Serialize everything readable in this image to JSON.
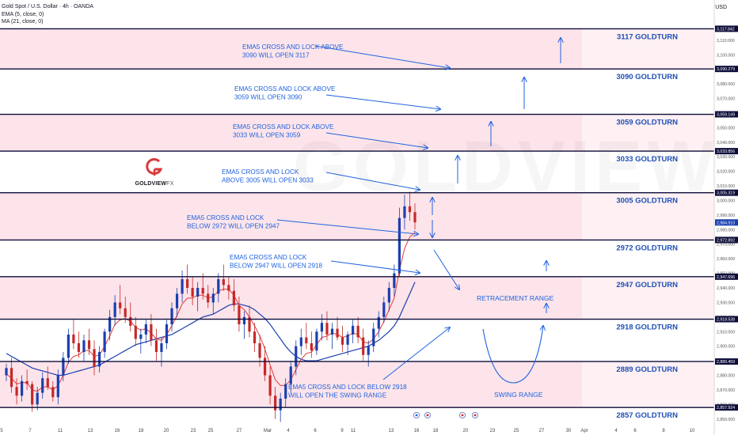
{
  "header": {
    "title": "Gold Spot / U.S. Dollar · 4h · OANDA",
    "indicator1": "EMA (5, close, 0)",
    "indicator2": "MA (21, close, 0)",
    "currency": "USD"
  },
  "logo": {
    "brand": "GOLDVIEW",
    "suffix": "FX"
  },
  "watermark": "GOLDVIEW F",
  "colors": {
    "zone": "#fde4ea",
    "line": "#0d0d3a",
    "annotation": "#1f63e0",
    "ema": "#e53935",
    "ma": "#1a3fb0",
    "up": "#1a3fb0",
    "down": "#c62828"
  },
  "chart_data": {
    "type": "candlestick",
    "y_axis": {
      "min": 2845,
      "max": 3130,
      "ticks": [
        2850,
        2860,
        2870,
        2880,
        2890,
        2900,
        2910,
        2920,
        2930,
        2940,
        2950,
        2960,
        2970,
        2980,
        2990,
        3000,
        3010,
        3020,
        3030,
        3040,
        3050,
        3060,
        3070,
        3080,
        3090,
        3100,
        3110
      ],
      "tick_labels": [
        "2,850.000",
        "2,860.000",
        "2,870.000",
        "2,880.000",
        "2,890.000",
        "2,900.000",
        "2,910.000",
        "2,920.000",
        "2,930.000",
        "2,940.000",
        "2,950.000",
        "2,960.000",
        "2,970.000",
        "2,980.000",
        "2,990.000",
        "3,000.000",
        "3,010.000",
        "3,020.000",
        "3,030.000",
        "3,040.000",
        "3,050.000",
        "3,060.000",
        "3,070.000",
        "3,080.000",
        "3,090.000",
        "3,100.000",
        "3,110.000"
      ]
    },
    "x_axis": {
      "labels": [
        "5",
        "7",
        "11",
        "13",
        "16",
        "18",
        "20",
        "23",
        "25",
        "27",
        "Mar",
        "4",
        "6",
        "9",
        "11",
        "13",
        "16",
        "18",
        "20",
        "23",
        "25",
        "27",
        "30",
        "Apr",
        "4",
        "6",
        "8",
        "10"
      ]
    },
    "levels": [
      {
        "value": 3117.842,
        "price_label": "3,117.842",
        "label": "3117 GOLDTURN"
      },
      {
        "value": 3090.279,
        "price_label": "3,090.279",
        "label": "3090 GOLDTURN"
      },
      {
        "value": 3059.149,
        "price_label": "3,059.149",
        "label": "3059 GOLDTURN"
      },
      {
        "value": 3033.856,
        "price_label": "3,033.856",
        "label": "3033 GOLDTURN"
      },
      {
        "value": 3005.319,
        "price_label": "3,005.319",
        "label": "3005 GOLDTURN"
      },
      {
        "value": 2972.892,
        "price_label": "2,972.892",
        "label": "2972 GOLDTURN"
      },
      {
        "value": 2947.696,
        "price_label": "2,947.696",
        "label": "2947 GOLDTURN"
      },
      {
        "value": 2918.538,
        "price_label": "2,918.538",
        "label": "2918 GOLDTURN"
      },
      {
        "value": 2889.459,
        "price_label": "2,889.459",
        "label": "2889 GOLDTURN"
      },
      {
        "value": 2857.924,
        "price_label": "2,857.924",
        "label": "2857 GOLDTURN"
      }
    ],
    "zones": [
      [
        3090.279,
        3117.842
      ],
      [
        3033.856,
        3059.149
      ],
      [
        2972.892,
        3005.319
      ],
      [
        2918.538,
        2947.696
      ],
      [
        2857.924,
        2889.459
      ]
    ],
    "current_price": {
      "value": 2984.91,
      "label": "2,984.910"
    },
    "annotations": [
      {
        "lines": [
          "EMA5 CROSS AND LOCK ABOVE",
          "3090 WILL OPEN 3117"
        ]
      },
      {
        "lines": [
          "EMA5 CROSS AND LOCK ABOVE",
          "3059 WILL OPEN 3090"
        ]
      },
      {
        "lines": [
          "EMA5 CROSS AND LOCK ABOVE",
          "3033 WILL OPEN 3059"
        ]
      },
      {
        "lines": [
          "EMA5 CROSS AND LOCK",
          "ABOVE 3005 WILL OPEN 3033"
        ]
      },
      {
        "lines": [
          "EMA5 CROSS AND LOCK",
          "BELOW 2972 WILL OPEN 2947"
        ]
      },
      {
        "lines": [
          "EMA5 CROSS AND LOCK",
          "BELOW 2947 WILL OPEN 2918"
        ]
      },
      {
        "lines": [
          "EMA5 CROSS AND LOCK BELOW 2918",
          "WILL OPEN THE SWING RANGE"
        ]
      }
    ],
    "range_labels": {
      "retracement": "RETRACEMENT RANGE",
      "swing": "SWING RANGE"
    },
    "candles": [
      [
        2880,
        2888,
        2876,
        2885
      ],
      [
        2885,
        2892,
        2868,
        2872
      ],
      [
        2872,
        2878,
        2860,
        2866
      ],
      [
        2866,
        2880,
        2862,
        2876
      ],
      [
        2876,
        2884,
        2870,
        2874
      ],
      [
        2874,
        2876,
        2855,
        2860
      ],
      [
        2860,
        2872,
        2856,
        2868
      ],
      [
        2868,
        2882,
        2864,
        2878
      ],
      [
        2878,
        2886,
        2870,
        2872
      ],
      [
        2872,
        2876,
        2862,
        2865
      ],
      [
        2865,
        2884,
        2860,
        2880
      ],
      [
        2880,
        2896,
        2876,
        2892
      ],
      [
        2892,
        2912,
        2888,
        2908
      ],
      [
        2908,
        2918,
        2898,
        2902
      ],
      [
        2902,
        2910,
        2892,
        2896
      ],
      [
        2896,
        2908,
        2890,
        2904
      ],
      [
        2904,
        2912,
        2894,
        2898
      ],
      [
        2898,
        2904,
        2880,
        2886
      ],
      [
        2886,
        2900,
        2882,
        2896
      ],
      [
        2896,
        2912,
        2892,
        2910
      ],
      [
        2910,
        2925,
        2904,
        2920
      ],
      [
        2920,
        2935,
        2914,
        2930
      ],
      [
        2930,
        2942,
        2922,
        2926
      ],
      [
        2926,
        2934,
        2916,
        2920
      ],
      [
        2920,
        2930,
        2910,
        2914
      ],
      [
        2914,
        2920,
        2900,
        2905
      ],
      [
        2905,
        2912,
        2895,
        2908
      ],
      [
        2908,
        2918,
        2902,
        2915
      ],
      [
        2915,
        2922,
        2900,
        2904
      ],
      [
        2904,
        2912,
        2890,
        2896
      ],
      [
        2896,
        2906,
        2886,
        2902
      ],
      [
        2902,
        2918,
        2898,
        2915
      ],
      [
        2915,
        2930,
        2910,
        2926
      ],
      [
        2926,
        2940,
        2920,
        2936
      ],
      [
        2936,
        2952,
        2930,
        2946
      ],
      [
        2946,
        2956,
        2936,
        2940
      ],
      [
        2940,
        2948,
        2928,
        2934
      ],
      [
        2934,
        2944,
        2924,
        2940
      ],
      [
        2940,
        2950,
        2932,
        2936
      ],
      [
        2936,
        2942,
        2926,
        2930
      ],
      [
        2930,
        2940,
        2922,
        2936
      ],
      [
        2936,
        2950,
        2930,
        2946
      ],
      [
        2946,
        2956,
        2938,
        2942
      ],
      [
        2942,
        2948,
        2932,
        2938
      ],
      [
        2938,
        2946,
        2924,
        2928
      ],
      [
        2928,
        2934,
        2910,
        2915
      ],
      [
        2915,
        2924,
        2905,
        2920
      ],
      [
        2920,
        2928,
        2906,
        2910
      ],
      [
        2910,
        2916,
        2896,
        2902
      ],
      [
        2902,
        2908,
        2886,
        2892
      ],
      [
        2892,
        2900,
        2876,
        2880
      ],
      [
        2880,
        2886,
        2860,
        2866
      ],
      [
        2866,
        2872,
        2850,
        2856
      ],
      [
        2856,
        2868,
        2848,
        2864
      ],
      [
        2864,
        2878,
        2858,
        2874
      ],
      [
        2874,
        2890,
        2868,
        2886
      ],
      [
        2886,
        2904,
        2880,
        2900
      ],
      [
        2900,
        2912,
        2894,
        2906
      ],
      [
        2906,
        2916,
        2898,
        2902
      ],
      [
        2902,
        2910,
        2892,
        2897
      ],
      [
        2897,
        2912,
        2894,
        2910
      ],
      [
        2910,
        2922,
        2904,
        2916
      ],
      [
        2916,
        2924,
        2904,
        2908
      ],
      [
        2908,
        2916,
        2898,
        2912
      ],
      [
        2912,
        2920,
        2904,
        2906
      ],
      [
        2906,
        2914,
        2896,
        2901
      ],
      [
        2901,
        2910,
        2894,
        2908
      ],
      [
        2908,
        2918,
        2902,
        2914
      ],
      [
        2914,
        2920,
        2902,
        2906
      ],
      [
        2906,
        2912,
        2890,
        2894
      ],
      [
        2894,
        2904,
        2886,
        2900
      ],
      [
        2900,
        2916,
        2896,
        2912
      ],
      [
        2912,
        2924,
        2906,
        2920
      ],
      [
        2920,
        2934,
        2916,
        2930
      ],
      [
        2930,
        2944,
        2924,
        2940
      ],
      [
        2940,
        2956,
        2934,
        2950
      ],
      [
        2950,
        2995,
        2948,
        2988
      ],
      [
        2988,
        3004,
        2980,
        2996
      ],
      [
        2996,
        3006,
        2986,
        2992
      ],
      [
        2992,
        2998,
        2980,
        2985
      ]
    ],
    "ema5": [
      2881,
      2878,
      2874,
      2875,
      2875,
      2870,
      2869,
      2872,
      2872,
      2870,
      2873,
      2880,
      2889,
      2893,
      2894,
      2897,
      2897,
      2893,
      2894,
      2900,
      2907,
      2915,
      2918,
      2919,
      2917,
      2913,
      2911,
      2912,
      2909,
      2905,
      2904,
      2908,
      2914,
      2921,
      2929,
      2933,
      2933,
      2935,
      2935,
      2933,
      2934,
      2938,
      2939,
      2939,
      2935,
      2928,
      2925,
      2920,
      2914,
      2907,
      2898,
      2887,
      2877,
      2873,
      2873,
      2877,
      2884,
      2891,
      2895,
      2896,
      2901,
      2906,
      2907,
      2909,
      2908,
      2906,
      2907,
      2909,
      2908,
      2903,
      2902,
      2905,
      2910,
      2917,
      2925,
      2933,
      2952,
      2967,
      2975,
      2978
    ],
    "ma21": [
      2895,
      2893,
      2891,
      2889,
      2887,
      2885,
      2884,
      2883,
      2882,
      2881,
      2880,
      2880,
      2881,
      2882,
      2883,
      2884,
      2885,
      2886,
      2887,
      2889,
      2891,
      2893,
      2895,
      2897,
      2899,
      2901,
      2902,
      2903,
      2904,
      2905,
      2906,
      2907,
      2908,
      2910,
      2912,
      2914,
      2916,
      2918,
      2920,
      2921,
      2922,
      2924,
      2926,
      2928,
      2929,
      2929,
      2928,
      2927,
      2925,
      2922,
      2919,
      2915,
      2910,
      2905,
      2900,
      2896,
      2893,
      2891,
      2890,
      2890,
      2890,
      2891,
      2892,
      2893,
      2894,
      2895,
      2896,
      2897,
      2898,
      2899,
      2900,
      2902,
      2904,
      2907,
      2910,
      2914,
      2920,
      2928,
      2936,
      2944
    ]
  }
}
